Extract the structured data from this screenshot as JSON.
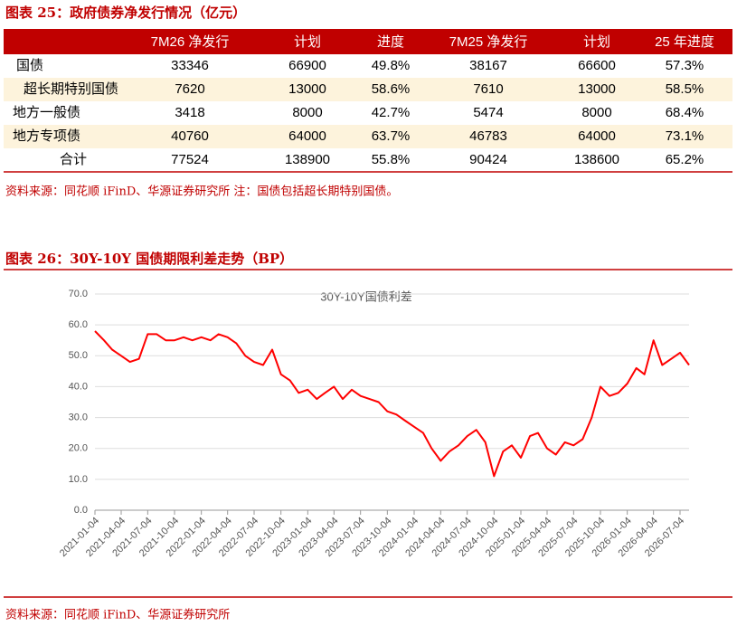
{
  "figure1": {
    "title": "图表 25：政府债券净发行情况（亿元）",
    "table": {
      "columns": [
        "7M26 净发行",
        "计划",
        "进度",
        "7M25 净发行",
        "计划",
        "25 年进度"
      ],
      "rows": [
        [
          "国债",
          "33346",
          "66900",
          "49.8%",
          "38167",
          "66600",
          "57.3%"
        ],
        [
          "超长期特别国债",
          "7620",
          "13000",
          "58.6%",
          "7610",
          "13000",
          "58.5%"
        ],
        [
          "地方一般债",
          "3418",
          "8000",
          "42.7%",
          "5474",
          "8000",
          "68.4%"
        ],
        [
          "地方专项债",
          "40760",
          "64000",
          "63.7%",
          "46783",
          "64000",
          "73.1%"
        ],
        [
          "合计",
          "77524",
          "138900",
          "55.8%",
          "90424",
          "138600",
          "65.2%"
        ]
      ]
    },
    "source": "资料来源：同花顺 iFinD、华源证券研究所 注：国债包括超长期特别国债。"
  },
  "figure2": {
    "title": "图表 26：30Y-10Y 国债期限利差走势（BP）",
    "source": "资料来源：同花顺 iFinD、华源证券研究所"
  },
  "chart_data": {
    "type": "line",
    "title": "30Y-10Y国债利差",
    "x": [
      "2021-01-04",
      "2021-02-04",
      "2021-03-04",
      "2021-04-04",
      "2021-05-04",
      "2021-06-04",
      "2021-07-04",
      "2021-08-04",
      "2021-09-04",
      "2021-10-04",
      "2021-11-04",
      "2021-12-04",
      "2022-01-04",
      "2022-02-04",
      "2022-03-04",
      "2022-04-04",
      "2022-05-04",
      "2022-06-04",
      "2022-07-04",
      "2022-08-04",
      "2022-09-04",
      "2022-10-04",
      "2022-11-04",
      "2022-12-04",
      "2023-01-04",
      "2023-02-04",
      "2023-03-04",
      "2023-04-04",
      "2023-05-04",
      "2023-06-04",
      "2023-07-04",
      "2023-08-04",
      "2023-09-04",
      "2023-10-04",
      "2023-11-04",
      "2023-12-04",
      "2024-01-04",
      "2024-02-04",
      "2024-03-04",
      "2024-04-04",
      "2024-05-04",
      "2024-06-04",
      "2024-07-04",
      "2024-08-04",
      "2024-09-04",
      "2024-10-04",
      "2024-11-04",
      "2024-12-04",
      "2025-01-04",
      "2025-02-04",
      "2025-03-04",
      "2025-04-04",
      "2025-05-04",
      "2025-06-04",
      "2025-07-04",
      "2025-08-04",
      "2025-09-04",
      "2025-10-04",
      "2025-11-04",
      "2025-12-04",
      "2026-01-04",
      "2026-02-04",
      "2026-03-04",
      "2026-04-04",
      "2026-05-04",
      "2026-06-04",
      "2026-07-04",
      "2026-08-04"
    ],
    "series": [
      {
        "name": "30Y-10Y国债利差",
        "color": "#ff0000",
        "values": [
          58,
          55,
          52,
          50,
          48,
          49,
          57,
          57,
          55,
          55,
          56,
          55,
          56,
          55,
          57,
          56,
          54,
          50,
          48,
          47,
          52,
          44,
          42,
          38,
          39,
          36,
          38,
          40,
          36,
          39,
          37,
          36,
          35,
          32,
          31,
          29,
          27,
          25,
          20,
          16,
          19,
          21,
          24,
          26,
          22,
          11,
          19,
          21,
          17,
          24,
          25,
          20,
          18,
          22,
          21,
          23,
          30,
          40,
          37,
          38,
          41,
          46,
          44,
          55,
          47,
          49,
          51,
          47
        ]
      }
    ],
    "xlim": [
      "2021-01-04",
      "2026-08-04"
    ],
    "xticks": [
      "2021-01-04",
      "2021-04-04",
      "2021-07-04",
      "2021-10-04",
      "2022-01-04",
      "2022-04-04",
      "2022-07-04",
      "2022-10-04",
      "2023-01-04",
      "2023-04-04",
      "2023-07-04",
      "2023-10-04",
      "2024-01-04",
      "2024-04-04",
      "2024-07-04",
      "2024-10-04",
      "2025-01-04",
      "2025-04-04",
      "2025-07-04",
      "2025-10-04",
      "2026-01-04",
      "2026-04-04",
      "2026-07-04"
    ],
    "ylim": [
      0,
      70
    ],
    "yticks": [
      {
        "value": 0,
        "label": "0.0"
      },
      {
        "value": 10,
        "label": "10.0"
      },
      {
        "value": 20,
        "label": "20.0"
      },
      {
        "value": 30,
        "label": "30.0"
      },
      {
        "value": 40,
        "label": "40.0"
      },
      {
        "value": 50,
        "label": "50.0"
      },
      {
        "value": 60,
        "label": "60.0"
      },
      {
        "value": 70,
        "label": "70.0"
      }
    ],
    "grid": true
  }
}
